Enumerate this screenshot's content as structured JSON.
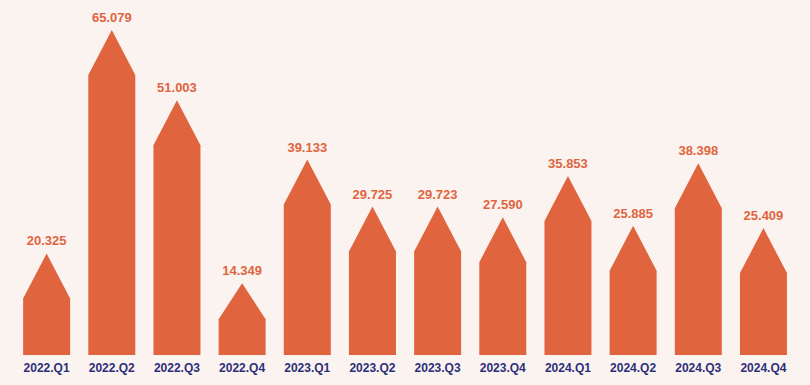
{
  "chart_data": {
    "type": "bar",
    "categories": [
      "2022.Q1",
      "2022.Q2",
      "2022.Q3",
      "2022.Q4",
      "2023.Q1",
      "2023.Q2",
      "2023.Q3",
      "2023.Q4",
      "2024.Q1",
      "2024.Q2",
      "2024.Q3",
      "2024.Q4"
    ],
    "values": [
      20.325,
      65.079,
      51.003,
      14.349,
      39.133,
      29.725,
      29.723,
      27.59,
      35.853,
      25.885,
      38.398,
      25.409
    ],
    "value_labels": [
      "20.325",
      "65.079",
      "51.003",
      "14.349",
      "39.133",
      "29.725",
      "29.723",
      "27.590",
      "35.853",
      "25.885",
      "38.398",
      "25.409"
    ],
    "color": "#e0653f",
    "data_labels": true,
    "tick_labels": "x",
    "grid": false
  }
}
